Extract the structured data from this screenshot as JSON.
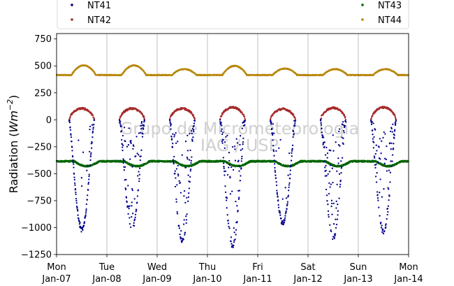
{
  "chart_data": {
    "type": "scatter",
    "ylabel": "Radiation (Wm^-2)",
    "ylim": [
      -1250,
      800
    ],
    "yticks": [
      -1250,
      -1000,
      -750,
      -500,
      -250,
      0,
      250,
      500,
      750
    ],
    "ytick_labels": [
      "−1250",
      "−1000",
      "−750",
      "−500",
      "−250",
      "0",
      "250",
      "500",
      "750"
    ],
    "xlim": [
      0,
      7
    ],
    "xticks": [
      {
        "day": 0,
        "line1": "Mon",
        "line2": "Jan-07"
      },
      {
        "day": 1,
        "line1": "Tue",
        "line2": "Jan-08"
      },
      {
        "day": 2,
        "line1": "Wed",
        "line2": "Jan-09"
      },
      {
        "day": 3,
        "line1": "Thu",
        "line2": "Jan-10"
      },
      {
        "day": 4,
        "line1": "Fri",
        "line2": "Jan-11"
      },
      {
        "day": 5,
        "line1": "Sat",
        "line2": "Jan-12"
      },
      {
        "day": 6,
        "line1": "Sun",
        "line2": "Jan-13"
      },
      {
        "day": 7,
        "line1": "Mon",
        "line2": "Jan-14"
      }
    ],
    "grid": "vertical",
    "legend_placement": "top",
    "watermark": [
      "Grupo de Micrometeorologia",
      "IAG / USP"
    ],
    "series": [
      {
        "name": "NT41",
        "color": "#00008b",
        "description": "night ~0, daytime troughs",
        "day_minimum": [
          -1020,
          -1010,
          -1120,
          -1170,
          -960,
          -1100,
          -1040
        ]
      },
      {
        "name": "NT42",
        "color": "#a52a2a",
        "description": "night ~0, daytime peaks",
        "day_maximum": [
          105,
          105,
          105,
          115,
          100,
          110,
          115
        ]
      },
      {
        "name": "NT43",
        "color": "#006400",
        "night_level": -385,
        "day_level": -430
      },
      {
        "name": "NT44",
        "color": "#b8860b",
        "night_level": 415,
        "day_maximum": [
          505,
          505,
          470,
          500,
          475,
          470,
          470
        ]
      }
    ]
  }
}
